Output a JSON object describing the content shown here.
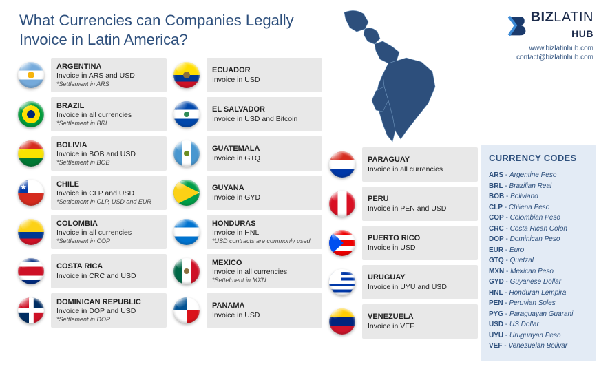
{
  "title": "What Currencies can Companies Legally Invoice in Latin America?",
  "brand": {
    "name_bold": "BIZ",
    "name_mid": "LATIN",
    "name_sub": "HUB",
    "website": "www.bizlatinhub.com",
    "email": "contact@bizlatinhub.com",
    "logo_color": "#1b3a6b"
  },
  "colors": {
    "title": "#2d4f7c",
    "card_bg": "#e8e8e8",
    "panel_bg": "#e3ebf5",
    "map_fill": "#2d4f7c"
  },
  "columns": [
    [
      {
        "flag": "f-ar",
        "name": "ARGENTINA",
        "invoice": "Invoice in ARS and USD",
        "note": "*Settlement in ARS"
      },
      {
        "flag": "f-br",
        "name": "BRAZIL",
        "invoice": "Invoice in all currencies",
        "note": "*Settlement in BRL"
      },
      {
        "flag": "f-bo",
        "name": "BOLIVIA",
        "invoice": "Invoice in BOB and USD",
        "note": "*Settlement in BOB"
      },
      {
        "flag": "f-cl",
        "name": "CHILE",
        "invoice": "Invoice in CLP and USD",
        "note": "*Settlement in CLP, USD and EUR"
      },
      {
        "flag": "f-co",
        "name": "COLOMBIA",
        "invoice": "Invoice in all currencies",
        "note": "*Settlement in COP"
      },
      {
        "flag": "f-cr",
        "name": "COSTA RICA",
        "invoice": "Invoice in CRC and USD",
        "note": ""
      },
      {
        "flag": "f-do",
        "name": "DOMINICAN REPUBLIC",
        "invoice": "Invoice in DOP and USD",
        "note": "*Settlement in DOP"
      }
    ],
    [
      {
        "flag": "f-ec",
        "name": "ECUADOR",
        "invoice": "Invoice in USD",
        "note": ""
      },
      {
        "flag": "f-sv",
        "name": "EL SALVADOR",
        "invoice": "Invoice in USD and Bitcoin",
        "note": ""
      },
      {
        "flag": "f-gt",
        "name": "GUATEMALA",
        "invoice": "Invoice in GTQ",
        "note": ""
      },
      {
        "flag": "f-gy",
        "name": "GUYANA",
        "invoice": "Invoice in GYD",
        "note": ""
      },
      {
        "flag": "f-hn",
        "name": "HONDURAS",
        "invoice": "Invoice in HNL",
        "note": "*USD contracts are commonly used"
      },
      {
        "flag": "f-mx",
        "name": "MEXICO",
        "invoice": "Invoice in all currencies",
        "note": "*Settelment in MXN"
      },
      {
        "flag": "f-pa",
        "name": "PANAMA",
        "invoice": "Invoice in USD",
        "note": ""
      }
    ],
    [
      {
        "flag": "f-py",
        "name": "PARAGUAY",
        "invoice": "Invoice in all currencies",
        "note": ""
      },
      {
        "flag": "f-pe",
        "name": "PERU",
        "invoice": "Invoice in PEN and USD",
        "note": ""
      },
      {
        "flag": "f-pr",
        "name": "PUERTO RICO",
        "invoice": "Invoice in USD",
        "note": ""
      },
      {
        "flag": "f-uy",
        "name": "URUGUAY",
        "invoice": "Invoice in UYU and USD",
        "note": ""
      },
      {
        "flag": "f-ve",
        "name": "VENEZUELA",
        "invoice": "Invoice in VEF",
        "note": ""
      }
    ]
  ],
  "codes": {
    "title": "CURRENCY CODES",
    "list": [
      {
        "c": "ARS",
        "n": "Argentine Peso"
      },
      {
        "c": "BRL",
        "n": "Brazilian Real"
      },
      {
        "c": "BOB",
        "n": "Boliviano"
      },
      {
        "c": "CLP",
        "n": "Chilena Peso"
      },
      {
        "c": "COP",
        "n": "Colombian Peso"
      },
      {
        "c": "CRC",
        "n": "Costa Rican Colon"
      },
      {
        "c": "DOP",
        "n": "Dominican Peso"
      },
      {
        "c": "EUR",
        "n": "Euro"
      },
      {
        "c": "GTQ",
        "n": "Quetzal"
      },
      {
        "c": "MXN",
        "n": "Mexican Peso"
      },
      {
        "c": "GYD",
        "n": "Guyanese Dollar"
      },
      {
        "c": "HNL",
        "n": "Honduran Lempira"
      },
      {
        "c": "PEN",
        "n": "Peruvian Soles"
      },
      {
        "c": "PYG",
        "n": "Paraguayan Guarani"
      },
      {
        "c": "USD",
        "n": "US Dollar"
      },
      {
        "c": "UYU",
        "n": "Uruguayan Peso"
      },
      {
        "c": "VEF",
        "n": "Venezuelan Bolivar"
      }
    ]
  }
}
